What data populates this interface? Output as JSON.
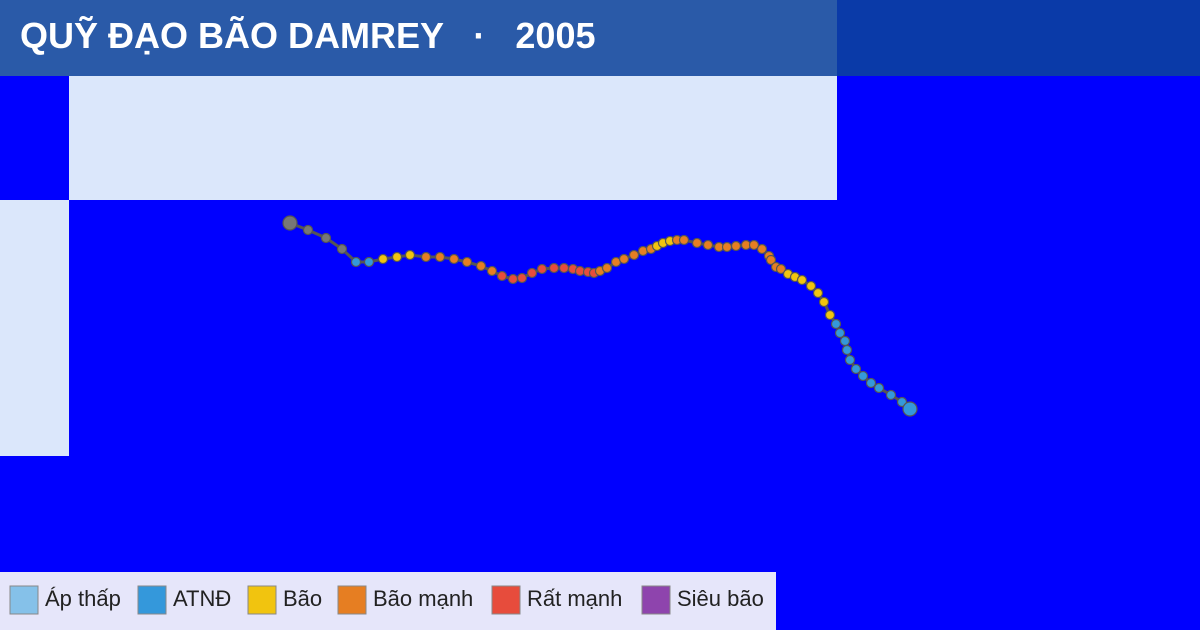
{
  "header": {
    "title": "QUỸ ĐẠO BÃO DAMREY",
    "separator": "·",
    "year": "2005"
  },
  "legend": {
    "items": [
      {
        "label": "Áp thấp",
        "color": "#85c1e9"
      },
      {
        "label": "ATNĐ",
        "color": "#3498db"
      },
      {
        "label": "Bão",
        "color": "#f1c40f"
      },
      {
        "label": "Bão mạnh",
        "color": "#e67e22"
      },
      {
        "label": "Rất mạnh",
        "color": "#e74c3c"
      },
      {
        "label": "Siêu bão",
        "color": "#8e44ad"
      }
    ]
  }
}
